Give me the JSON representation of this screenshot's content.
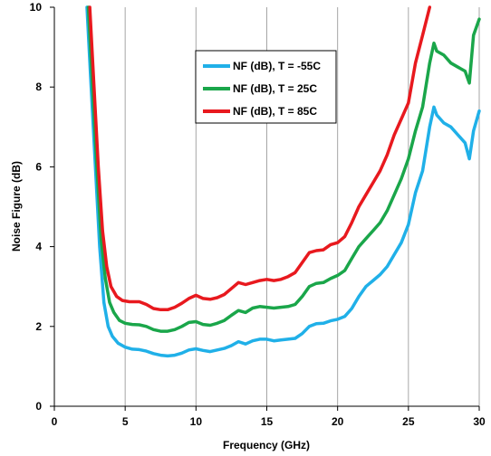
{
  "chart_data": {
    "type": "line",
    "title": "",
    "xlabel": "Frequency (GHz)",
    "ylabel": "Noise Figure (dB)",
    "xlim": [
      0,
      30
    ],
    "ylim": [
      0,
      10
    ],
    "x_ticks": [
      "0",
      "5",
      "10",
      "15",
      "20",
      "25",
      "30"
    ],
    "y_ticks": [
      "0",
      "2",
      "4",
      "6",
      "8",
      "10"
    ],
    "grid": "vertical",
    "legend_position": "top-center",
    "series": [
      {
        "name": "NF (dB), T = -55C",
        "color": "#20b0e8",
        "points": [
          [
            2.3,
            10.0
          ],
          [
            2.6,
            8.0
          ],
          [
            2.9,
            6.0
          ],
          [
            3.2,
            4.0
          ],
          [
            3.5,
            2.6
          ],
          [
            3.8,
            2.0
          ],
          [
            4.1,
            1.75
          ],
          [
            4.5,
            1.58
          ],
          [
            5.0,
            1.48
          ],
          [
            5.5,
            1.43
          ],
          [
            6.0,
            1.42
          ],
          [
            6.5,
            1.38
          ],
          [
            7.0,
            1.32
          ],
          [
            7.5,
            1.28
          ],
          [
            8.0,
            1.26
          ],
          [
            8.5,
            1.28
          ],
          [
            9.0,
            1.33
          ],
          [
            9.5,
            1.41
          ],
          [
            10.0,
            1.44
          ],
          [
            10.5,
            1.4
          ],
          [
            11.0,
            1.37
          ],
          [
            11.5,
            1.41
          ],
          [
            12.0,
            1.45
          ],
          [
            12.5,
            1.52
          ],
          [
            13.0,
            1.62
          ],
          [
            13.5,
            1.56
          ],
          [
            14.0,
            1.64
          ],
          [
            14.5,
            1.68
          ],
          [
            15.0,
            1.68
          ],
          [
            15.5,
            1.64
          ],
          [
            16.0,
            1.66
          ],
          [
            16.5,
            1.68
          ],
          [
            17.0,
            1.7
          ],
          [
            17.5,
            1.82
          ],
          [
            18.0,
            2.0
          ],
          [
            18.5,
            2.07
          ],
          [
            19.0,
            2.08
          ],
          [
            19.5,
            2.14
          ],
          [
            20.0,
            2.18
          ],
          [
            20.5,
            2.25
          ],
          [
            21.0,
            2.45
          ],
          [
            21.5,
            2.75
          ],
          [
            22.0,
            3.0
          ],
          [
            22.5,
            3.15
          ],
          [
            23.0,
            3.3
          ],
          [
            23.5,
            3.5
          ],
          [
            24.0,
            3.8
          ],
          [
            24.5,
            4.1
          ],
          [
            25.0,
            4.55
          ],
          [
            25.5,
            5.35
          ],
          [
            26.0,
            5.9
          ],
          [
            26.5,
            7.0
          ],
          [
            26.8,
            7.5
          ],
          [
            27.0,
            7.3
          ],
          [
            27.5,
            7.1
          ],
          [
            28.0,
            7.0
          ],
          [
            28.5,
            6.8
          ],
          [
            29.0,
            6.6
          ],
          [
            29.3,
            6.2
          ],
          [
            29.6,
            6.9
          ],
          [
            30.0,
            7.4
          ]
        ]
      },
      {
        "name": "NF (dB), T = 25C",
        "color": "#1aa64a",
        "points": [
          [
            2.4,
            10.0
          ],
          [
            2.7,
            8.0
          ],
          [
            3.0,
            6.0
          ],
          [
            3.3,
            4.2
          ],
          [
            3.6,
            3.2
          ],
          [
            3.9,
            2.6
          ],
          [
            4.2,
            2.35
          ],
          [
            4.6,
            2.15
          ],
          [
            5.0,
            2.08
          ],
          [
            5.5,
            2.05
          ],
          [
            6.0,
            2.04
          ],
          [
            6.5,
            2.0
          ],
          [
            7.0,
            1.92
          ],
          [
            7.5,
            1.88
          ],
          [
            8.0,
            1.88
          ],
          [
            8.5,
            1.92
          ],
          [
            9.0,
            2.0
          ],
          [
            9.5,
            2.1
          ],
          [
            10.0,
            2.12
          ],
          [
            10.5,
            2.05
          ],
          [
            11.0,
            2.03
          ],
          [
            11.5,
            2.08
          ],
          [
            12.0,
            2.15
          ],
          [
            12.5,
            2.28
          ],
          [
            13.0,
            2.4
          ],
          [
            13.5,
            2.35
          ],
          [
            14.0,
            2.46
          ],
          [
            14.5,
            2.5
          ],
          [
            15.0,
            2.48
          ],
          [
            15.5,
            2.46
          ],
          [
            16.0,
            2.48
          ],
          [
            16.5,
            2.5
          ],
          [
            17.0,
            2.55
          ],
          [
            17.5,
            2.75
          ],
          [
            18.0,
            3.0
          ],
          [
            18.5,
            3.08
          ],
          [
            19.0,
            3.1
          ],
          [
            19.5,
            3.2
          ],
          [
            20.0,
            3.28
          ],
          [
            20.5,
            3.4
          ],
          [
            21.0,
            3.7
          ],
          [
            21.5,
            4.0
          ],
          [
            22.0,
            4.2
          ],
          [
            22.5,
            4.4
          ],
          [
            23.0,
            4.6
          ],
          [
            23.5,
            4.9
          ],
          [
            24.0,
            5.3
          ],
          [
            24.5,
            5.7
          ],
          [
            25.0,
            6.2
          ],
          [
            25.5,
            6.9
          ],
          [
            26.0,
            7.5
          ],
          [
            26.5,
            8.6
          ],
          [
            26.8,
            9.1
          ],
          [
            27.0,
            8.9
          ],
          [
            27.5,
            8.8
          ],
          [
            28.0,
            8.6
          ],
          [
            28.5,
            8.5
          ],
          [
            29.0,
            8.4
          ],
          [
            29.3,
            8.1
          ],
          [
            29.6,
            9.3
          ],
          [
            30.0,
            9.7
          ]
        ]
      },
      {
        "name": "NF (dB), T = 85C",
        "color": "#e8191e",
        "points": [
          [
            2.5,
            10.0
          ],
          [
            2.8,
            8.0
          ],
          [
            3.1,
            6.0
          ],
          [
            3.4,
            4.4
          ],
          [
            3.7,
            3.5
          ],
          [
            4.0,
            3.0
          ],
          [
            4.4,
            2.75
          ],
          [
            4.8,
            2.65
          ],
          [
            5.3,
            2.62
          ],
          [
            6.0,
            2.62
          ],
          [
            6.5,
            2.55
          ],
          [
            7.0,
            2.45
          ],
          [
            7.5,
            2.42
          ],
          [
            8.0,
            2.42
          ],
          [
            8.5,
            2.48
          ],
          [
            9.0,
            2.58
          ],
          [
            9.5,
            2.7
          ],
          [
            10.0,
            2.78
          ],
          [
            10.5,
            2.7
          ],
          [
            11.0,
            2.68
          ],
          [
            11.5,
            2.72
          ],
          [
            12.0,
            2.8
          ],
          [
            12.5,
            2.95
          ],
          [
            13.0,
            3.1
          ],
          [
            13.5,
            3.05
          ],
          [
            14.0,
            3.1
          ],
          [
            14.5,
            3.15
          ],
          [
            15.0,
            3.18
          ],
          [
            15.5,
            3.15
          ],
          [
            16.0,
            3.18
          ],
          [
            16.5,
            3.25
          ],
          [
            17.0,
            3.35
          ],
          [
            17.5,
            3.6
          ],
          [
            18.0,
            3.85
          ],
          [
            18.5,
            3.9
          ],
          [
            19.0,
            3.92
          ],
          [
            19.5,
            4.05
          ],
          [
            20.0,
            4.1
          ],
          [
            20.5,
            4.25
          ],
          [
            21.0,
            4.6
          ],
          [
            21.5,
            5.0
          ],
          [
            22.0,
            5.3
          ],
          [
            22.5,
            5.6
          ],
          [
            23.0,
            5.9
          ],
          [
            23.5,
            6.3
          ],
          [
            24.0,
            6.8
          ],
          [
            24.5,
            7.2
          ],
          [
            25.0,
            7.6
          ],
          [
            25.5,
            8.6
          ],
          [
            26.0,
            9.3
          ],
          [
            26.5,
            10.0
          ]
        ]
      }
    ]
  }
}
